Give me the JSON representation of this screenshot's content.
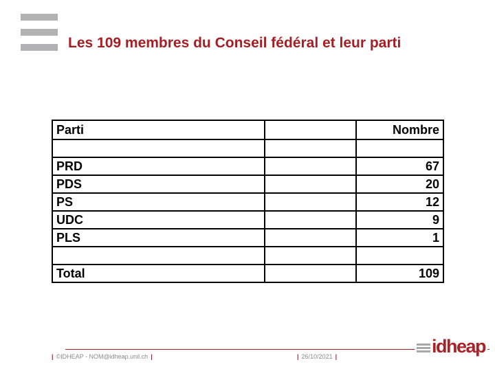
{
  "slide": {
    "title": "Les 109 membres du Conseil fédéral et leur parti"
  },
  "table": {
    "header": {
      "party": "Parti",
      "middle": "",
      "count": "Nombre"
    },
    "rows": [
      {
        "party": "",
        "middle": "",
        "count": ""
      },
      {
        "party": "PRD",
        "middle": "",
        "count": "67"
      },
      {
        "party": "PDS",
        "middle": "",
        "count": "20"
      },
      {
        "party": "PS",
        "middle": "",
        "count": "12"
      },
      {
        "party": "UDC",
        "middle": "",
        "count": "9"
      },
      {
        "party": "PLS",
        "middle": "",
        "count": "1"
      },
      {
        "party": "",
        "middle": "",
        "count": ""
      },
      {
        "party": "Total",
        "middle": "",
        "count": "109"
      }
    ]
  },
  "footer": {
    "pipe": "|",
    "copyright": "©IDHEAP - NOM@idheap.unil.ch",
    "date": "26/10/2021",
    "logo_text": "idheap"
  },
  "colors": {
    "title_red": "#a41e23",
    "logo_red": "#a82228",
    "rule_red": "#a02025",
    "bar_gray": "#b2b2b5",
    "footer_gray": "#8a8a8a"
  }
}
